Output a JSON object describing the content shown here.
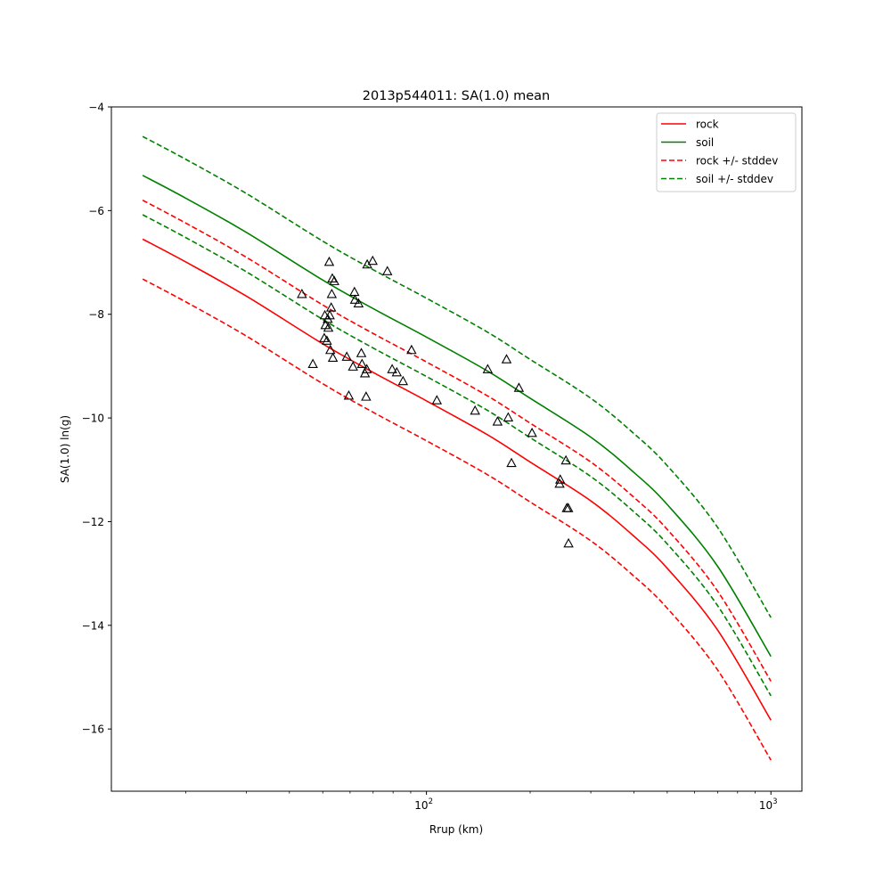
{
  "chart_data": {
    "type": "line",
    "title": "2013p544011: SA(1.0) mean",
    "xlabel": "Rrup (km)",
    "ylabel": "SA(1.0) ln(g)",
    "xscale": "log",
    "xlim": [
      12.17,
      1230
    ],
    "ylim": [
      -17.2,
      -4.0
    ],
    "yticks": [
      -16,
      -14,
      -12,
      -10,
      -8,
      -6,
      -4
    ],
    "ytick_labels": [
      "−16",
      "−14",
      "−12",
      "−10",
      "−8",
      "−6",
      "−4"
    ],
    "xticks": [
      100,
      1000
    ],
    "xtick_labels": {
      "base": "10",
      "exponents": [
        "2",
        "3"
      ]
    },
    "grid": false,
    "legend_position": "top-right",
    "series": [
      {
        "name": "rock",
        "color": "#ff0000",
        "style": "solid",
        "x": [
          15,
          20,
          30,
          50,
          70,
          100,
          150,
          200,
          300,
          400,
          500,
          700,
          1000
        ],
        "y": [
          -6.55,
          -6.99,
          -7.65,
          -8.57,
          -9.12,
          -9.67,
          -10.32,
          -10.85,
          -11.6,
          -12.28,
          -12.9,
          -14.09,
          -15.83
        ]
      },
      {
        "name": "soil",
        "color": "#008000",
        "style": "solid",
        "x": [
          15,
          20,
          30,
          50,
          70,
          100,
          150,
          200,
          300,
          400,
          500,
          700,
          1000
        ],
        "y": [
          -5.32,
          -5.76,
          -6.42,
          -7.34,
          -7.89,
          -8.44,
          -9.09,
          -9.62,
          -10.37,
          -11.05,
          -11.67,
          -12.86,
          -14.6
        ]
      },
      {
        "name": "rock +/- stddev",
        "color": "#ff0000",
        "style": "dashed",
        "x": [
          15,
          20,
          30,
          50,
          70,
          100,
          150,
          200,
          300,
          400,
          500,
          700,
          1000
        ],
        "y": [
          -5.8,
          -6.24,
          -6.9,
          -7.82,
          -8.37,
          -8.92,
          -9.57,
          -10.1,
          -10.85,
          -11.53,
          -12.15,
          -13.34,
          -15.08
        ]
      },
      {
        "name": "rock +/- stddev (lower)",
        "legend": false,
        "color": "#ff0000",
        "style": "dashed",
        "x": [
          15,
          20,
          30,
          50,
          70,
          100,
          150,
          200,
          300,
          400,
          500,
          700,
          1000
        ],
        "y": [
          -7.32,
          -7.76,
          -8.42,
          -9.34,
          -9.89,
          -10.44,
          -11.09,
          -11.62,
          -12.37,
          -13.05,
          -13.67,
          -14.86,
          -16.6
        ]
      },
      {
        "name": "soil +/- stddev",
        "color": "#008000",
        "style": "dashed",
        "x": [
          15,
          20,
          30,
          50,
          70,
          100,
          150,
          200,
          300,
          400,
          500,
          700,
          1000
        ],
        "y": [
          -4.57,
          -5.01,
          -5.67,
          -6.59,
          -7.14,
          -7.69,
          -8.34,
          -8.87,
          -9.62,
          -10.3,
          -10.92,
          -12.11,
          -13.85
        ]
      },
      {
        "name": "soil +/- stddev (lower)",
        "legend": false,
        "color": "#008000",
        "style": "dashed",
        "x": [
          15,
          20,
          30,
          50,
          70,
          100,
          150,
          200,
          300,
          400,
          500,
          700,
          1000
        ],
        "y": [
          -6.08,
          -6.52,
          -7.18,
          -8.1,
          -8.65,
          -9.2,
          -9.85,
          -10.38,
          -11.13,
          -11.81,
          -12.43,
          -13.62,
          -15.36
        ]
      }
    ],
    "observations": {
      "marker": "triangle",
      "color": "#000000",
      "points": [
        [
          43.5,
          -7.62
        ],
        [
          46.8,
          -8.97
        ],
        [
          50.5,
          -8.47
        ],
        [
          50.7,
          -8.03
        ],
        [
          50.9,
          -8.22
        ],
        [
          51.4,
          -8.52
        ],
        [
          51.7,
          -8.1
        ],
        [
          51.9,
          -8.27
        ],
        [
          52.2,
          -7.0
        ],
        [
          52.4,
          -8.03
        ],
        [
          52.6,
          -8.7
        ],
        [
          52.9,
          -7.88
        ],
        [
          53.1,
          -7.62
        ],
        [
          53.3,
          -7.32
        ],
        [
          53.5,
          -8.85
        ],
        [
          54.0,
          -7.37
        ],
        [
          58.7,
          -8.83
        ],
        [
          59.5,
          -9.58
        ],
        [
          61.2,
          -9.02
        ],
        [
          61.8,
          -7.58
        ],
        [
          62.0,
          -7.73
        ],
        [
          63.5,
          -7.8
        ],
        [
          64.7,
          -8.76
        ],
        [
          65.0,
          -8.97
        ],
        [
          66.3,
          -9.15
        ],
        [
          66.8,
          -9.6
        ],
        [
          67.1,
          -9.07
        ],
        [
          67.3,
          -7.05
        ],
        [
          69.8,
          -6.98
        ],
        [
          77.0,
          -7.18
        ],
        [
          79.5,
          -9.07
        ],
        [
          82.0,
          -9.13
        ],
        [
          85.5,
          -9.3
        ],
        [
          90.5,
          -8.7
        ],
        [
          107.2,
          -9.67
        ],
        [
          138.4,
          -9.87
        ],
        [
          150.6,
          -9.07
        ],
        [
          160.8,
          -10.08
        ],
        [
          170.8,
          -8.88
        ],
        [
          172.7,
          -10.0
        ],
        [
          176.5,
          -10.88
        ],
        [
          185.5,
          -9.43
        ],
        [
          202.5,
          -10.3
        ],
        [
          243.5,
          -11.28
        ],
        [
          244.5,
          -11.2
        ],
        [
          254.0,
          -10.83
        ],
        [
          255.5,
          -11.75
        ],
        [
          258.0,
          -11.75
        ],
        [
          258.5,
          -12.43
        ]
      ]
    }
  }
}
